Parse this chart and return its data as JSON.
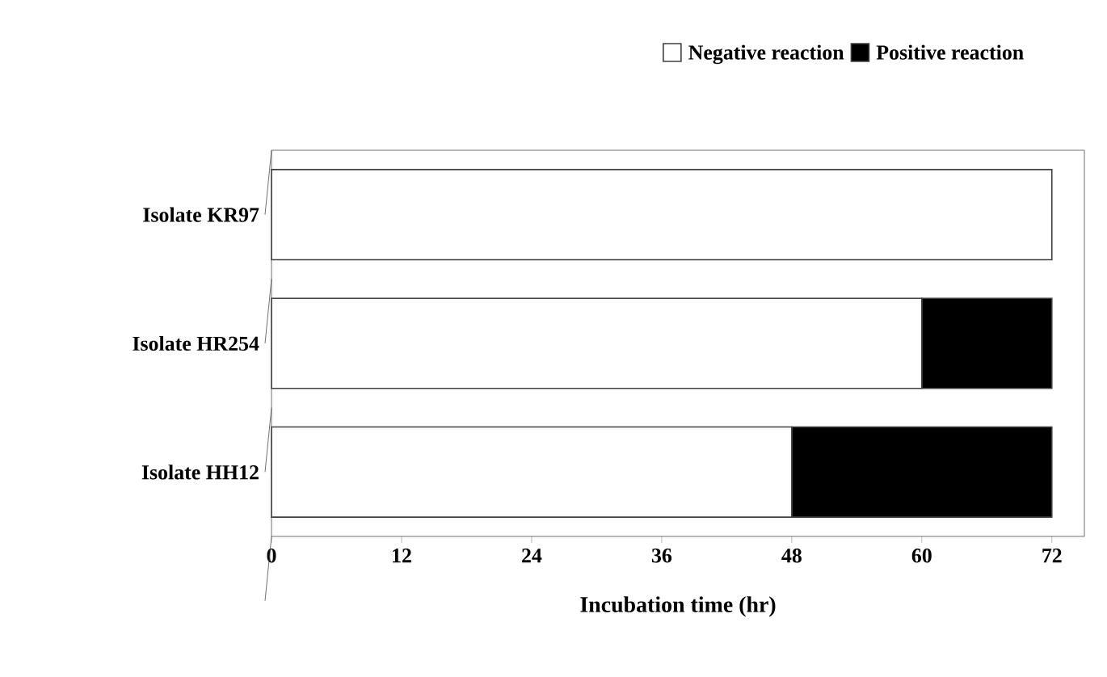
{
  "chart_data": {
    "type": "bar",
    "orientation": "horizontal",
    "stacked": true,
    "xlabel": "Incubation time (hr)",
    "categories": [
      "Isolate KR97",
      "Isolate HR254",
      "Isolate HH12"
    ],
    "series": [
      {
        "name": "Negative reaction",
        "color": "#ffffff",
        "values": [
          72,
          60,
          48
        ]
      },
      {
        "name": "Positive reaction",
        "color": "#000000",
        "values": [
          0,
          12,
          24
        ]
      }
    ],
    "xlim": [
      0,
      75
    ],
    "xticks": [
      0,
      12,
      24,
      36,
      48,
      60,
      72
    ],
    "legend": "top right",
    "grid": false
  }
}
